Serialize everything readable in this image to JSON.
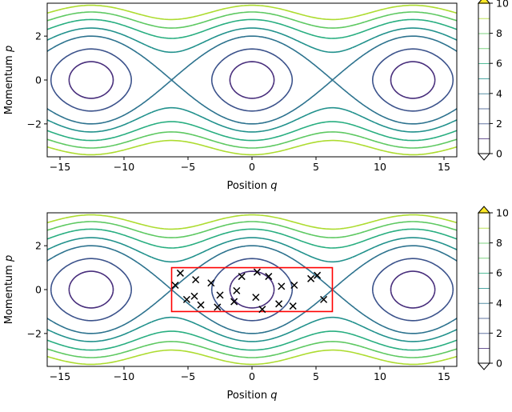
{
  "chart_data": [
    {
      "type": "contour",
      "xlabel": "Position q",
      "ylabel": "Momentum p",
      "xlim": [
        -16,
        16
      ],
      "ylim": [
        -3.5,
        3.5
      ],
      "xticks": [
        -15,
        -10,
        -5,
        0,
        5,
        10,
        15
      ],
      "yticks": [
        -2,
        0,
        2
      ],
      "colorbar": {
        "min": 0,
        "max": 10,
        "ticks": [
          0,
          2,
          4,
          6,
          8,
          10
        ],
        "extend": "both"
      },
      "levels": [
        1,
        2,
        3,
        4,
        5,
        6,
        7,
        8,
        9,
        10
      ],
      "colors": [
        "#472d7b",
        "#3b528b",
        "#2c728e",
        "#21918c",
        "#28ae80",
        "#5ec962",
        "#addc30",
        "#fde725"
      ],
      "grid": false
    },
    {
      "type": "contour",
      "xlabel": "Position q",
      "ylabel": "Momentum p",
      "xlim": [
        -16,
        16
      ],
      "ylim": [
        -3.5,
        3.5
      ],
      "xticks": [
        -15,
        -10,
        -5,
        0,
        5,
        10,
        15
      ],
      "yticks": [
        -2,
        0,
        2
      ],
      "colorbar": {
        "min": 0,
        "max": 10,
        "ticks": [
          0,
          2,
          4,
          6,
          8,
          10
        ],
        "extend": "both"
      },
      "levels": [
        1,
        2,
        3,
        4,
        5,
        6,
        7,
        8,
        9,
        10
      ],
      "colors": [
        "#472d7b",
        "#3b528b",
        "#2c728e",
        "#21918c",
        "#28ae80",
        "#5ec962",
        "#addc30",
        "#fde725"
      ],
      "grid": false,
      "box": {
        "q": [
          -6.28,
          6.28
        ],
        "p": [
          -1,
          1
        ],
        "color": "#ff0000"
      },
      "scatter": {
        "marker": "x",
        "points": [
          [
            -5.6,
            0.75
          ],
          [
            -6.0,
            0.2
          ],
          [
            -4.4,
            0.45
          ],
          [
            -5.1,
            -0.45
          ],
          [
            -4.5,
            -0.3
          ],
          [
            -3.2,
            0.3
          ],
          [
            -4.0,
            -0.7
          ],
          [
            -2.5,
            -0.25
          ],
          [
            -2.7,
            -0.8
          ],
          [
            -1.4,
            -0.55
          ],
          [
            -1.2,
            -0.05
          ],
          [
            -0.8,
            0.6
          ],
          [
            0.3,
            -0.35
          ],
          [
            0.4,
            0.8
          ],
          [
            1.3,
            0.6
          ],
          [
            0.8,
            -0.9
          ],
          [
            2.1,
            -0.65
          ],
          [
            2.3,
            0.15
          ],
          [
            3.3,
            0.2
          ],
          [
            3.2,
            -0.75
          ],
          [
            4.6,
            0.5
          ],
          [
            5.1,
            0.65
          ],
          [
            5.6,
            -0.45
          ]
        ]
      }
    }
  ]
}
